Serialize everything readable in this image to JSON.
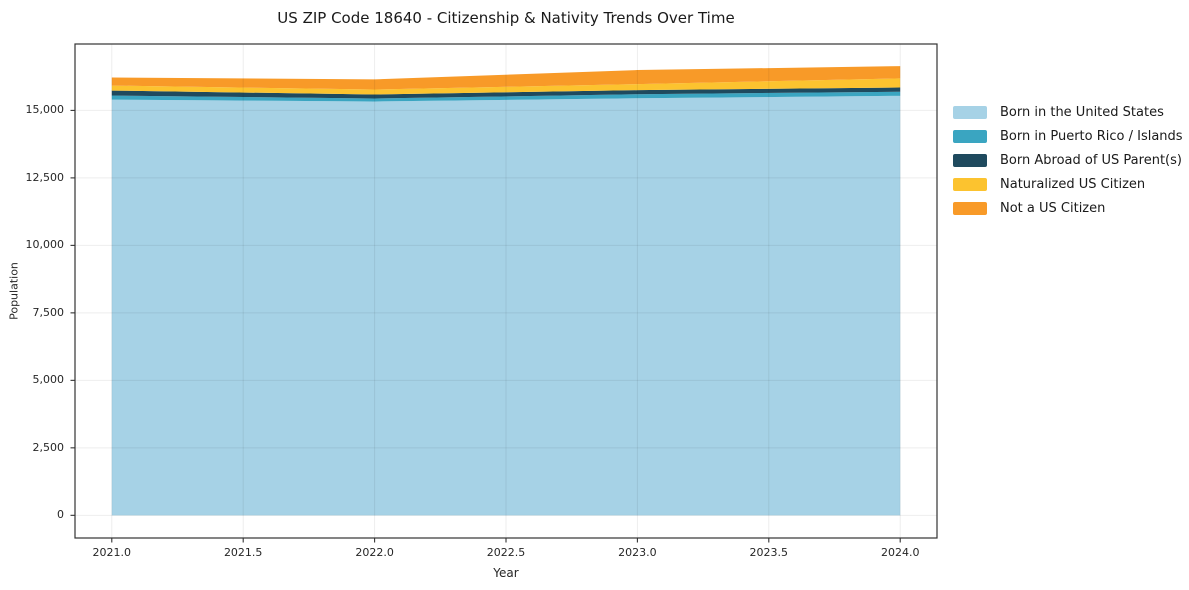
{
  "title": "US ZIP Code 18640 - Citizenship & Nativity Trends Over Time",
  "chart_data": {
    "type": "area",
    "stacked": true,
    "title": "US ZIP Code 18640 - Citizenship & Nativity Trends Over Time",
    "xlabel": "Year",
    "ylabel": "Population",
    "x": [
      2021,
      2022,
      2023,
      2024
    ],
    "series": [
      {
        "name": "Born in the United States",
        "color": "#a6d2e6",
        "values": [
          15400,
          15330,
          15450,
          15540
        ]
      },
      {
        "name": "Born in Puerto Rico / Islands",
        "color": "#3aa5c1",
        "values": [
          150,
          110,
          150,
          150
        ]
      },
      {
        "name": "Born Abroad of US Parent(s)",
        "color": "#1f4a5e",
        "values": [
          185,
          150,
          150,
          160
        ]
      },
      {
        "name": "Naturalized US Citizen",
        "color": "#fcc32f",
        "values": [
          185,
          185,
          225,
          335
        ]
      },
      {
        "name": "Not a US Citizen",
        "color": "#f89a28",
        "values": [
          300,
          375,
          520,
          455
        ]
      }
    ],
    "xlim": [
      2020.86,
      2024.14
    ],
    "ylim": [
      -840,
      17460
    ],
    "xticks": [
      "2021.0",
      "2021.5",
      "2022.0",
      "2022.5",
      "2023.0",
      "2023.5",
      "2024.0"
    ],
    "xtick_values": [
      2021.0,
      2021.5,
      2022.0,
      2022.5,
      2023.0,
      2023.5,
      2024.0
    ],
    "yticks": [
      "0",
      "2,500",
      "5,000",
      "7,500",
      "10,000",
      "12,500",
      "15,000"
    ],
    "ytick_values": [
      0,
      2500,
      5000,
      7500,
      10000,
      12500,
      15000
    ],
    "grid": true,
    "legend_position": "right"
  },
  "colors": {
    "frame": "#333333",
    "grid": "rgba(0,0,0,0.07)",
    "text": "#262626",
    "background": "#ffffff"
  }
}
